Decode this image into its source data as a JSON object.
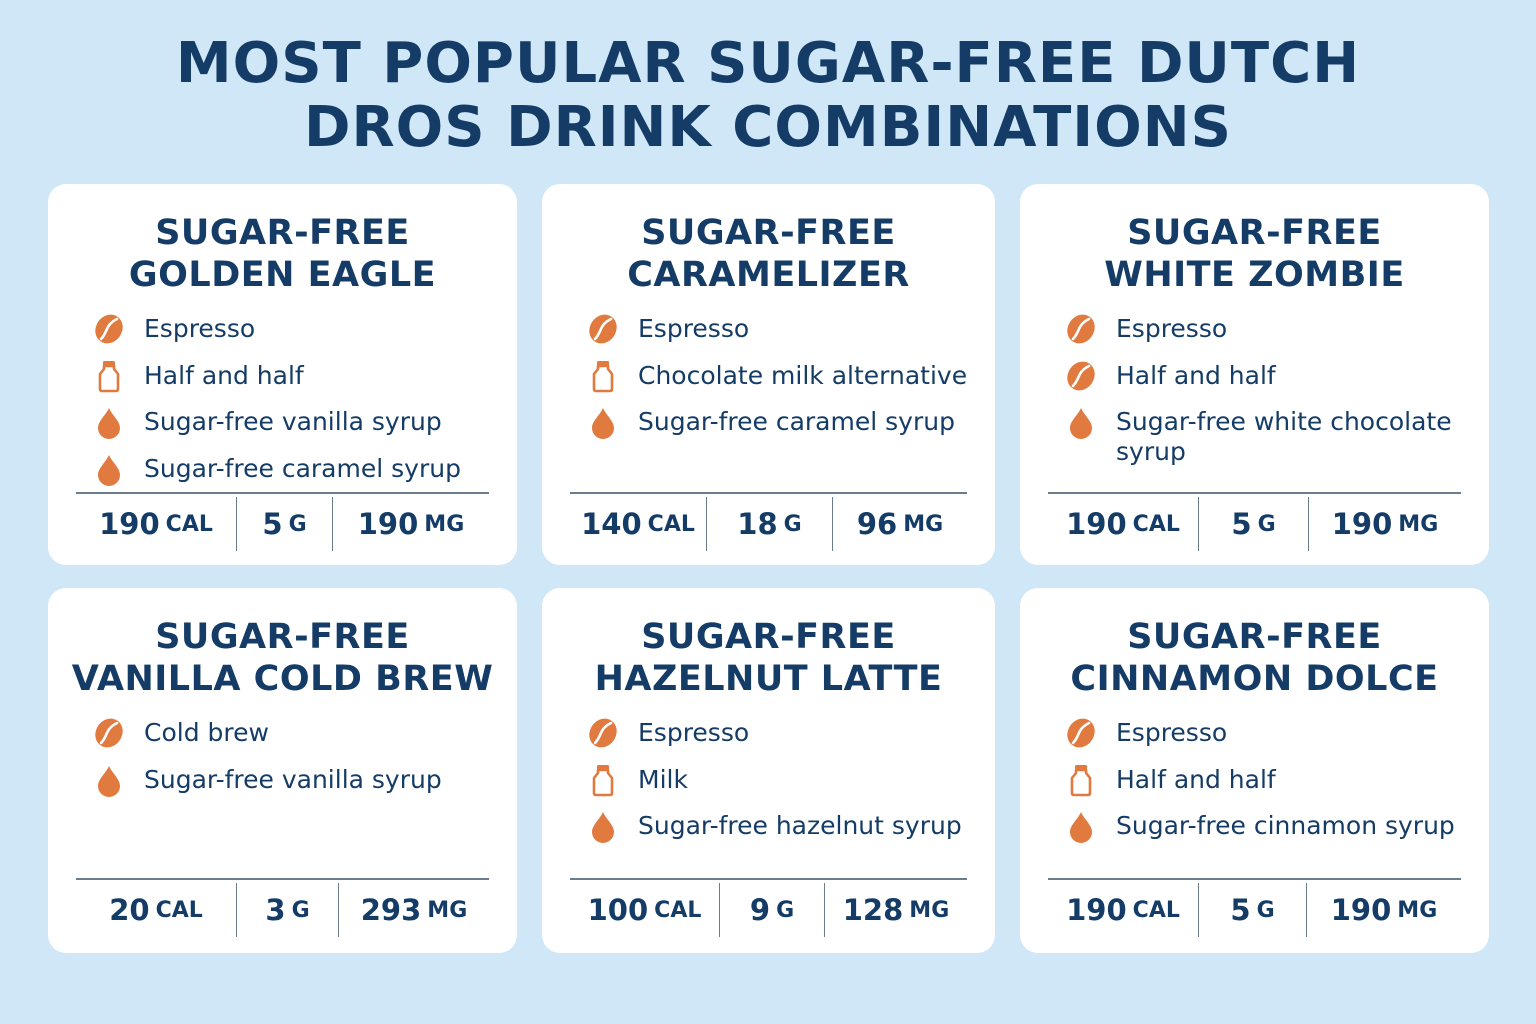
{
  "title": {
    "line1": "MOST POPULAR SUGAR-FREE DUTCH",
    "line2": "DROS DRINK COMBINATIONS"
  },
  "colors": {
    "background": "#cfe7f7",
    "card": "#ffffff",
    "text": "#143c66",
    "icon": "#e07a3f"
  },
  "cards": [
    {
      "title_line1": "SUGAR-FREE",
      "title_line2": "GOLDEN EAGLE",
      "ingredients": [
        {
          "icon": "coffee-bean-icon",
          "text": "Espresso"
        },
        {
          "icon": "milk-bottle-icon",
          "text": "Half and half"
        },
        {
          "icon": "syrup-drop-icon",
          "text": "Sugar-free vanilla syrup"
        },
        {
          "icon": "syrup-drop-icon",
          "text": "Sugar-free caramel syrup"
        }
      ],
      "calories": {
        "value": "190",
        "unit": "CAL"
      },
      "sugar": {
        "value": "5",
        "unit": "G"
      },
      "caffeine": {
        "value": "190",
        "unit": "MG"
      }
    },
    {
      "title_line1": "SUGAR-FREE",
      "title_line2": "CARAMELIZER",
      "ingredients": [
        {
          "icon": "coffee-bean-icon",
          "text": "Espresso"
        },
        {
          "icon": "milk-bottle-icon",
          "text": "Chocolate milk alternative"
        },
        {
          "icon": "syrup-drop-icon",
          "text": "Sugar-free caramel syrup"
        }
      ],
      "calories": {
        "value": "140",
        "unit": "CAL"
      },
      "sugar": {
        "value": "18",
        "unit": "G"
      },
      "caffeine": {
        "value": "96",
        "unit": "MG"
      }
    },
    {
      "title_line1": "SUGAR-FREE",
      "title_line2": "WHITE ZOMBIE",
      "ingredients": [
        {
          "icon": "coffee-bean-icon",
          "text": "Espresso"
        },
        {
          "icon": "coffee-bean-icon",
          "text": "Half and half"
        },
        {
          "icon": "syrup-drop-icon",
          "text": "Sugar-free white chocolate syrup"
        }
      ],
      "calories": {
        "value": "190",
        "unit": "CAL"
      },
      "sugar": {
        "value": "5",
        "unit": "G"
      },
      "caffeine": {
        "value": "190",
        "unit": "MG"
      }
    },
    {
      "title_line1": "SUGAR-FREE",
      "title_line2": "VANILLA COLD BREW",
      "ingredients": [
        {
          "icon": "coffee-bean-icon",
          "text": "Cold brew"
        },
        {
          "icon": "syrup-drop-icon",
          "text": "Sugar-free vanilla syrup"
        }
      ],
      "calories": {
        "value": "20",
        "unit": "CAL"
      },
      "sugar": {
        "value": "3",
        "unit": "G"
      },
      "caffeine": {
        "value": "293",
        "unit": "MG"
      }
    },
    {
      "title_line1": "SUGAR-FREE",
      "title_line2": "HAZELNUT LATTE",
      "ingredients": [
        {
          "icon": "coffee-bean-icon",
          "text": "Espresso"
        },
        {
          "icon": "milk-bottle-icon",
          "text": "Milk"
        },
        {
          "icon": "syrup-drop-icon",
          "text": "Sugar-free hazelnut syrup"
        }
      ],
      "calories": {
        "value": "100",
        "unit": "CAL"
      },
      "sugar": {
        "value": "9",
        "unit": "G"
      },
      "caffeine": {
        "value": "128",
        "unit": "MG"
      }
    },
    {
      "title_line1": "SUGAR-FREE",
      "title_line2": "CINNAMON DOLCE",
      "ingredients": [
        {
          "icon": "coffee-bean-icon",
          "text": "Espresso"
        },
        {
          "icon": "milk-bottle-icon",
          "text": "Half and half"
        },
        {
          "icon": "syrup-drop-icon",
          "text": "Sugar-free cinnamon syrup"
        }
      ],
      "calories": {
        "value": "190",
        "unit": "CAL"
      },
      "sugar": {
        "value": "5",
        "unit": "G"
      },
      "caffeine": {
        "value": "190",
        "unit": "MG"
      }
    }
  ]
}
